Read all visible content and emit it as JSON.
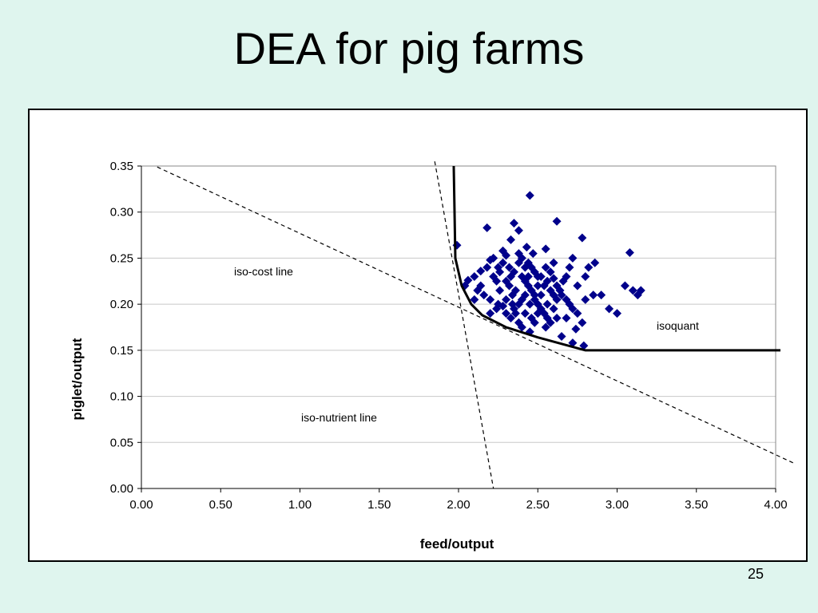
{
  "slide": {
    "title": "DEA for pig farms",
    "page_number": "25"
  },
  "chart_data": {
    "type": "scatter",
    "title": "",
    "xlabel": "feed/output",
    "ylabel": "piglet/output",
    "xlim": [
      0,
      4
    ],
    "ylim": [
      0,
      0.35
    ],
    "x_ticks": [
      "0.00",
      "0.50",
      "1.00",
      "1.50",
      "2.00",
      "2.50",
      "3.00",
      "3.50",
      "4.00"
    ],
    "y_ticks": [
      "0.00",
      "0.05",
      "0.10",
      "0.15",
      "0.20",
      "0.25",
      "0.30",
      "0.35"
    ],
    "grid": "horizontal",
    "annotations": {
      "iso_cost": "iso-cost line",
      "iso_nutrient": "iso-nutrient line",
      "isoquant": "isoquant"
    },
    "marker_color": "#00008b",
    "isoquant": [
      [
        1.97,
        0.35
      ],
      [
        1.98,
        0.25
      ],
      [
        2.02,
        0.22
      ],
      [
        2.08,
        0.2
      ],
      [
        2.15,
        0.188
      ],
      [
        2.3,
        0.175
      ],
      [
        2.5,
        0.164
      ],
      [
        2.8,
        0.15
      ],
      [
        4.03,
        0.15
      ]
    ],
    "iso_cost_line": [
      [
        0.1,
        0.349
      ],
      [
        4.12,
        0.027
      ]
    ],
    "iso_nutrient_line": [
      [
        1.85,
        0.355
      ],
      [
        2.22,
        0.0
      ]
    ],
    "points": [
      [
        2.45,
        0.318
      ],
      [
        2.62,
        0.29
      ],
      [
        2.18,
        0.283
      ],
      [
        2.78,
        0.272
      ],
      [
        1.99,
        0.264
      ],
      [
        3.08,
        0.256
      ],
      [
        2.35,
        0.288
      ],
      [
        2.38,
        0.28
      ],
      [
        2.33,
        0.27
      ],
      [
        2.43,
        0.262
      ],
      [
        2.55,
        0.26
      ],
      [
        2.72,
        0.25
      ],
      [
        2.28,
        0.258
      ],
      [
        2.3,
        0.253
      ],
      [
        2.2,
        0.248
      ],
      [
        2.18,
        0.24
      ],
      [
        2.14,
        0.236
      ],
      [
        2.1,
        0.23
      ],
      [
        2.06,
        0.226
      ],
      [
        2.04,
        0.22
      ],
      [
        2.12,
        0.215
      ],
      [
        2.16,
        0.21
      ],
      [
        2.2,
        0.205
      ],
      [
        2.25,
        0.2
      ],
      [
        2.28,
        0.198
      ],
      [
        2.3,
        0.19
      ],
      [
        2.33,
        0.185
      ],
      [
        2.38,
        0.18
      ],
      [
        2.42,
        0.19
      ],
      [
        2.45,
        0.2
      ],
      [
        2.48,
        0.21
      ],
      [
        2.5,
        0.22
      ],
      [
        2.52,
        0.23
      ],
      [
        2.55,
        0.24
      ],
      [
        2.58,
        0.235
      ],
      [
        2.6,
        0.228
      ],
      [
        2.62,
        0.22
      ],
      [
        2.65,
        0.21
      ],
      [
        2.68,
        0.205
      ],
      [
        2.7,
        0.2
      ],
      [
        2.72,
        0.195
      ],
      [
        2.75,
        0.19
      ],
      [
        2.8,
        0.205
      ],
      [
        2.85,
        0.21
      ],
      [
        2.9,
        0.21
      ],
      [
        2.95,
        0.195
      ],
      [
        3.0,
        0.19
      ],
      [
        3.05,
        0.22
      ],
      [
        3.1,
        0.215
      ],
      [
        3.13,
        0.21
      ],
      [
        3.15,
        0.215
      ],
      [
        2.82,
        0.24
      ],
      [
        2.86,
        0.245
      ],
      [
        2.8,
        0.23
      ],
      [
        2.75,
        0.22
      ],
      [
        2.78,
        0.18
      ],
      [
        2.74,
        0.173
      ],
      [
        2.72,
        0.158
      ],
      [
        2.79,
        0.155
      ],
      [
        2.65,
        0.165
      ],
      [
        2.55,
        0.175
      ],
      [
        2.45,
        0.17
      ],
      [
        2.4,
        0.175
      ],
      [
        2.35,
        0.195
      ],
      [
        2.3,
        0.205
      ],
      [
        2.26,
        0.215
      ],
      [
        2.24,
        0.225
      ],
      [
        2.22,
        0.23
      ],
      [
        2.25,
        0.24
      ],
      [
        2.28,
        0.245
      ],
      [
        2.32,
        0.24
      ],
      [
        2.35,
        0.235
      ],
      [
        2.38,
        0.245
      ],
      [
        2.4,
        0.25
      ],
      [
        2.44,
        0.245
      ],
      [
        2.46,
        0.24
      ],
      [
        2.48,
        0.235
      ],
      [
        2.5,
        0.23
      ],
      [
        2.4,
        0.23
      ],
      [
        2.42,
        0.225
      ],
      [
        2.44,
        0.22
      ],
      [
        2.46,
        0.215
      ],
      [
        2.48,
        0.205
      ],
      [
        2.5,
        0.2
      ],
      [
        2.52,
        0.195
      ],
      [
        2.54,
        0.19
      ],
      [
        2.56,
        0.185
      ],
      [
        2.58,
        0.18
      ],
      [
        2.6,
        0.195
      ],
      [
        2.62,
        0.205
      ],
      [
        2.64,
        0.215
      ],
      [
        2.66,
        0.225
      ],
      [
        2.68,
        0.23
      ],
      [
        2.36,
        0.215
      ],
      [
        2.34,
        0.21
      ],
      [
        2.32,
        0.22
      ],
      [
        2.3,
        0.225
      ],
      [
        2.38,
        0.2
      ],
      [
        2.4,
        0.205
      ],
      [
        2.42,
        0.21
      ],
      [
        2.36,
        0.19
      ],
      [
        2.34,
        0.2
      ],
      [
        2.5,
        0.19
      ],
      [
        2.52,
        0.21
      ],
      [
        2.54,
        0.22
      ],
      [
        2.56,
        0.225
      ],
      [
        2.58,
        0.215
      ],
      [
        2.6,
        0.21
      ],
      [
        2.46,
        0.185
      ],
      [
        2.48,
        0.18
      ],
      [
        2.56,
        0.2
      ],
      [
        2.44,
        0.23
      ],
      [
        2.26,
        0.235
      ],
      [
        2.22,
        0.25
      ],
      [
        2.14,
        0.22
      ],
      [
        2.1,
        0.205
      ],
      [
        2.6,
        0.245
      ],
      [
        2.42,
        0.24
      ],
      [
        2.7,
        0.24
      ],
      [
        2.62,
        0.185
      ],
      [
        2.68,
        0.185
      ],
      [
        2.38,
        0.255
      ],
      [
        2.47,
        0.255
      ],
      [
        2.33,
        0.23
      ],
      [
        2.24,
        0.195
      ],
      [
        2.2,
        0.19
      ]
    ]
  }
}
